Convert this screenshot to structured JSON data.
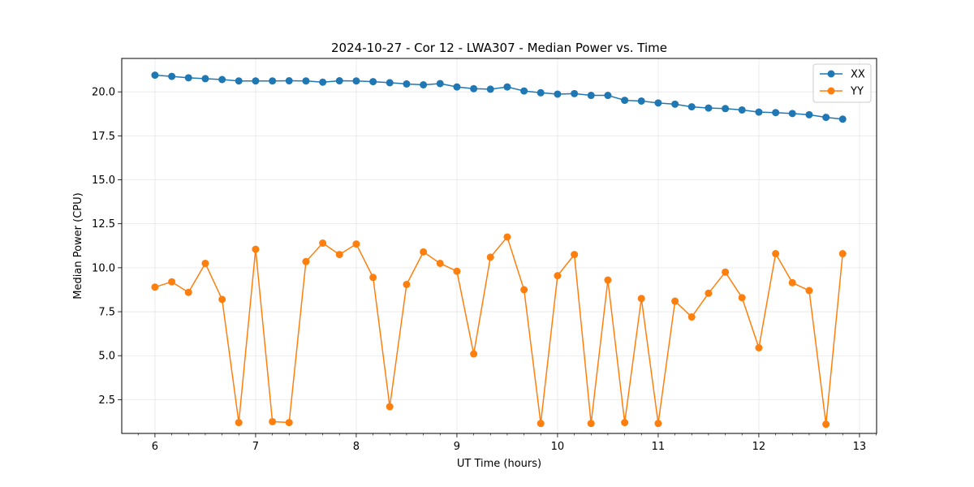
{
  "chart_data": {
    "type": "line",
    "title": "2024-10-27 - Cor 12 - LWA307 - Median Power vs. Time",
    "xlabel": "UT Time (hours)",
    "ylabel": "Median Power (CPU)",
    "xlim": [
      5.67,
      13.17
    ],
    "ylim": [
      0.58,
      21.9
    ],
    "xticks": [
      6,
      7,
      8,
      9,
      10,
      11,
      12,
      13
    ],
    "xtick_labels": [
      "6",
      "7",
      "8",
      "9",
      "10",
      "11",
      "12",
      "13"
    ],
    "yticks": [
      2.5,
      5.0,
      7.5,
      10.0,
      12.5,
      15.0,
      17.5,
      20.0
    ],
    "ytick_labels": [
      "2.5",
      "5.0",
      "7.5",
      "10.0",
      "12.5",
      "15.0",
      "17.5",
      "20.0"
    ],
    "grid": true,
    "legend_position": "top-right",
    "x": [
      6.0,
      6.167,
      6.333,
      6.5,
      6.667,
      6.833,
      7.0,
      7.167,
      7.333,
      7.5,
      7.667,
      7.833,
      8.0,
      8.167,
      8.333,
      8.5,
      8.667,
      8.833,
      9.0,
      9.167,
      9.333,
      9.5,
      9.667,
      9.833,
      10.0,
      10.167,
      10.333,
      10.5,
      10.667,
      10.833,
      11.0,
      11.167,
      11.333,
      11.5,
      11.667,
      11.833,
      12.0,
      12.167,
      12.333,
      12.5,
      12.667,
      12.833
    ],
    "series": [
      {
        "name": "XX",
        "color": "#1f77b4",
        "values": [
          20.95,
          20.88,
          20.8,
          20.75,
          20.7,
          20.62,
          20.62,
          20.62,
          20.63,
          20.62,
          20.55,
          20.63,
          20.62,
          20.58,
          20.52,
          20.45,
          20.4,
          20.47,
          20.28,
          20.18,
          20.15,
          20.28,
          20.05,
          19.95,
          19.87,
          19.9,
          19.8,
          19.8,
          19.52,
          19.48,
          19.37,
          19.3,
          19.15,
          19.08,
          19.05,
          18.97,
          18.85,
          18.82,
          18.77,
          18.7,
          18.55,
          18.45
        ]
      },
      {
        "name": "YY",
        "color": "#ff7f0e",
        "values": [
          8.9,
          9.2,
          8.6,
          10.25,
          8.2,
          1.2,
          11.05,
          1.25,
          1.2,
          10.35,
          11.4,
          10.75,
          11.35,
          9.45,
          2.1,
          9.05,
          10.9,
          10.25,
          9.8,
          5.1,
          10.6,
          11.75,
          8.75,
          1.15,
          9.55,
          10.75,
          1.15,
          9.3,
          1.2,
          8.25,
          1.15,
          8.1,
          7.2,
          8.55,
          9.75,
          8.3,
          5.45,
          10.8,
          9.15,
          8.7,
          1.1,
          10.8
        ]
      }
    ]
  }
}
